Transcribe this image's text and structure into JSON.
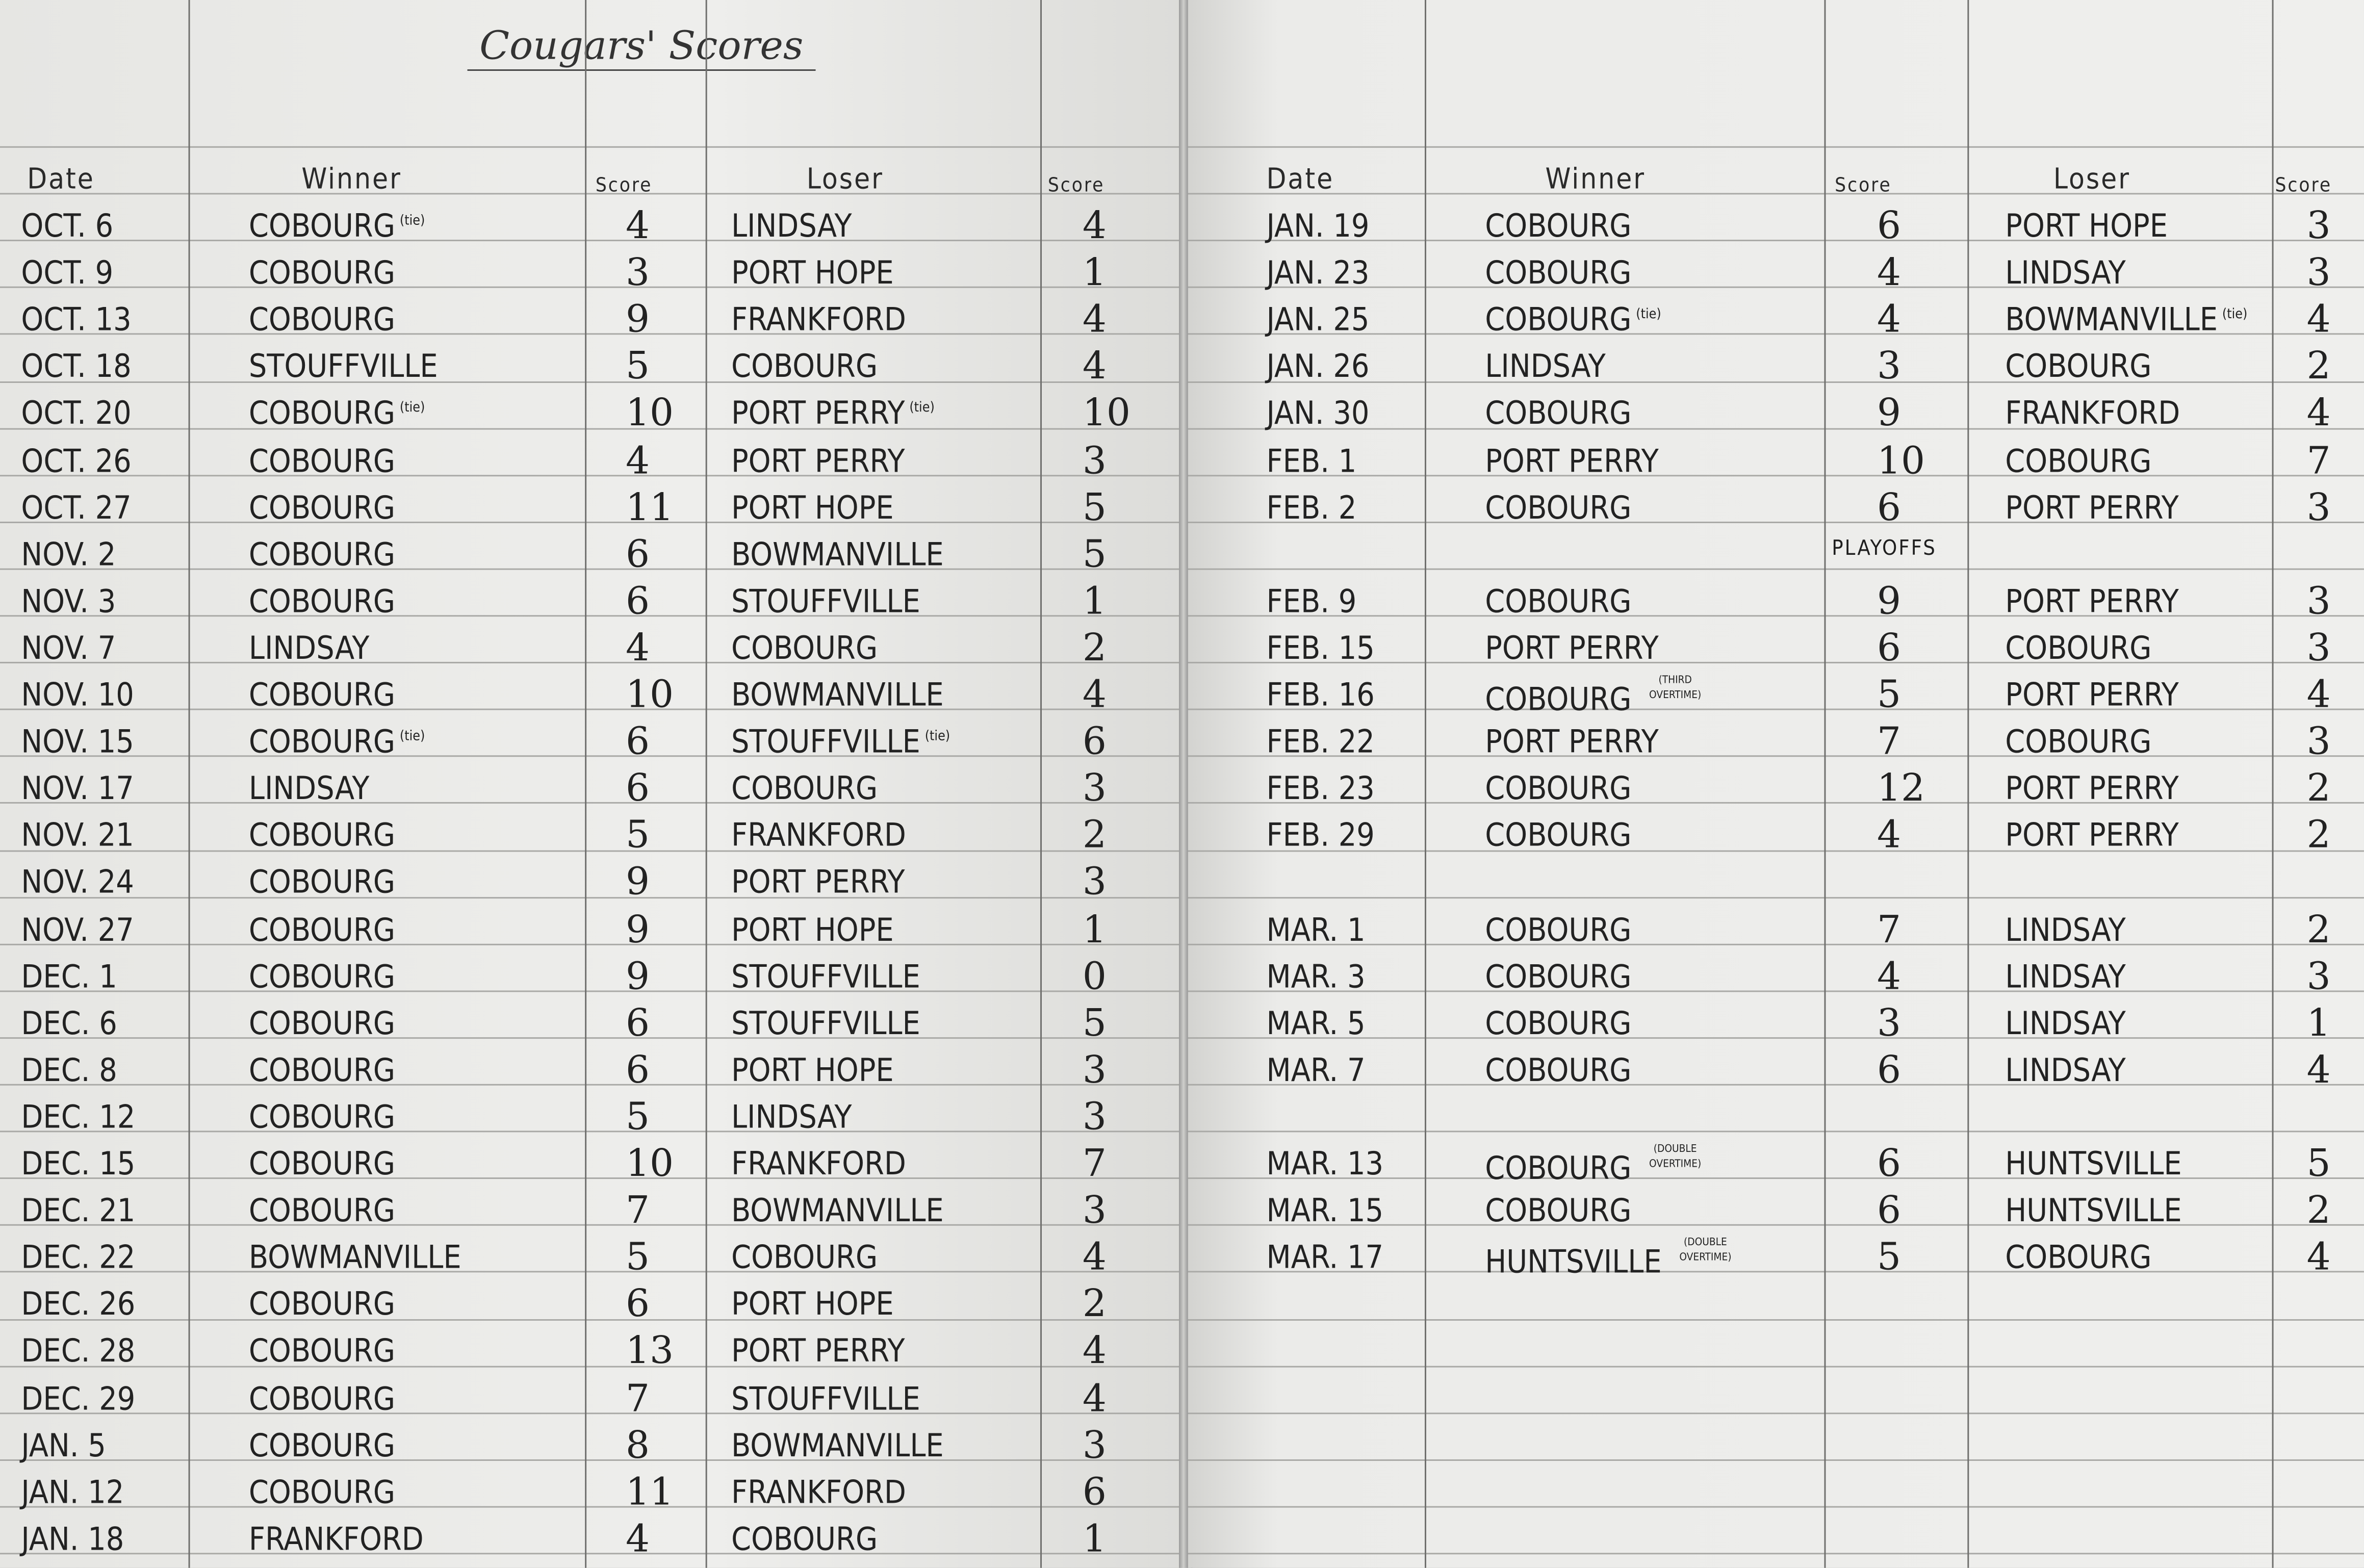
{
  "title": "Cougars' Scores",
  "headers": {
    "date": "Date",
    "winner": "Winner",
    "score": "Score",
    "loser": "Loser"
  },
  "playoffs_label": "Playoffs",
  "left_games": [
    {
      "date": "Oct. 6",
      "winner": "Cobourg",
      "winner_note": "(tie)",
      "winner_score": "4",
      "loser": "Lindsay",
      "loser_note": "",
      "loser_score": "4"
    },
    {
      "date": "Oct. 9",
      "winner": "Cobourg",
      "winner_note": "",
      "winner_score": "3",
      "loser": "Port Hope",
      "loser_note": "",
      "loser_score": "1"
    },
    {
      "date": "Oct. 13",
      "winner": "Cobourg",
      "winner_note": "",
      "winner_score": "9",
      "loser": "Frankford",
      "loser_note": "",
      "loser_score": "4"
    },
    {
      "date": "Oct. 18",
      "winner": "Stouffville",
      "winner_note": "",
      "winner_score": "5",
      "loser": "Cobourg",
      "loser_note": "",
      "loser_score": "4"
    },
    {
      "date": "Oct. 20",
      "winner": "Cobourg",
      "winner_note": "(tie)",
      "winner_score": "10",
      "loser": "Port Perry",
      "loser_note": "(tie)",
      "loser_score": "10"
    },
    {
      "date": "Oct. 26",
      "winner": "Cobourg",
      "winner_note": "",
      "winner_score": "4",
      "loser": "Port Perry",
      "loser_note": "",
      "loser_score": "3"
    },
    {
      "date": "Oct. 27",
      "winner": "Cobourg",
      "winner_note": "",
      "winner_score": "11",
      "loser": "Port Hope",
      "loser_note": "",
      "loser_score": "5"
    },
    {
      "date": "Nov. 2",
      "winner": "Cobourg",
      "winner_note": "",
      "winner_score": "6",
      "loser": "Bowmanville",
      "loser_note": "",
      "loser_score": "5"
    },
    {
      "date": "Nov. 3",
      "winner": "Cobourg",
      "winner_note": "",
      "winner_score": "6",
      "loser": "Stouffville",
      "loser_note": "",
      "loser_score": "1"
    },
    {
      "date": "Nov. 7",
      "winner": "Lindsay",
      "winner_note": "",
      "winner_score": "4",
      "loser": "Cobourg",
      "loser_note": "",
      "loser_score": "2"
    },
    {
      "date": "Nov. 10",
      "winner": "Cobourg",
      "winner_note": "",
      "winner_score": "10",
      "loser": "Bowmanville",
      "loser_note": "",
      "loser_score": "4"
    },
    {
      "date": "Nov. 15",
      "winner": "Cobourg",
      "winner_note": "(tie)",
      "winner_score": "6",
      "loser": "Stouffville",
      "loser_note": "(tie)",
      "loser_score": "6"
    },
    {
      "date": "Nov. 17",
      "winner": "Lindsay",
      "winner_note": "",
      "winner_score": "6",
      "loser": "Cobourg",
      "loser_note": "",
      "loser_score": "3"
    },
    {
      "date": "Nov. 21",
      "winner": "Cobourg",
      "winner_note": "",
      "winner_score": "5",
      "loser": "Frankford",
      "loser_note": "",
      "loser_score": "2"
    },
    {
      "date": "Nov. 24",
      "winner": "Cobourg",
      "winner_note": "",
      "winner_score": "9",
      "loser": "Port Perry",
      "loser_note": "",
      "loser_score": "3"
    },
    {
      "date": "Nov. 27",
      "winner": "Cobourg",
      "winner_note": "",
      "winner_score": "9",
      "loser": "Port Hope",
      "loser_note": "",
      "loser_score": "1"
    },
    {
      "date": "Dec. 1",
      "winner": "Cobourg",
      "winner_note": "",
      "winner_score": "9",
      "loser": "Stouffville",
      "loser_note": "",
      "loser_score": "0"
    },
    {
      "date": "Dec. 6",
      "winner": "Cobourg",
      "winner_note": "",
      "winner_score": "6",
      "loser": "Stouffville",
      "loser_note": "",
      "loser_score": "5"
    },
    {
      "date": "Dec. 8",
      "winner": "Cobourg",
      "winner_note": "",
      "winner_score": "6",
      "loser": "Port Hope",
      "loser_note": "",
      "loser_score": "3"
    },
    {
      "date": "Dec. 12",
      "winner": "Cobourg",
      "winner_note": "",
      "winner_score": "5",
      "loser": "Lindsay",
      "loser_note": "",
      "loser_score": "3"
    },
    {
      "date": "Dec. 15",
      "winner": "Cobourg",
      "winner_note": "",
      "winner_score": "10",
      "loser": "Frankford",
      "loser_note": "",
      "loser_score": "7"
    },
    {
      "date": "Dec. 21",
      "winner": "Cobourg",
      "winner_note": "",
      "winner_score": "7",
      "loser": "Bowmanville",
      "loser_note": "",
      "loser_score": "3"
    },
    {
      "date": "Dec. 22",
      "winner": "Bowmanville",
      "winner_note": "",
      "winner_score": "5",
      "loser": "Cobourg",
      "loser_note": "",
      "loser_score": "4"
    },
    {
      "date": "Dec. 26",
      "winner": "Cobourg",
      "winner_note": "",
      "winner_score": "6",
      "loser": "Port Hope",
      "loser_note": "",
      "loser_score": "2"
    },
    {
      "date": "Dec. 28",
      "winner": "Cobourg",
      "winner_note": "",
      "winner_score": "13",
      "loser": "Port Perry",
      "loser_note": "",
      "loser_score": "4"
    },
    {
      "date": "Dec. 29",
      "winner": "Cobourg",
      "winner_note": "",
      "winner_score": "7",
      "loser": "Stouffville",
      "loser_note": "",
      "loser_score": "4"
    },
    {
      "date": "Jan. 5",
      "winner": "Cobourg",
      "winner_note": "",
      "winner_score": "8",
      "loser": "Bowmanville",
      "loser_note": "",
      "loser_score": "3"
    },
    {
      "date": "Jan. 12",
      "winner": "Cobourg",
      "winner_note": "",
      "winner_score": "11",
      "loser": "Frankford",
      "loser_note": "",
      "loser_score": "6"
    },
    {
      "date": "Jan. 18",
      "winner": "Frankford",
      "winner_note": "",
      "winner_score": "4",
      "loser": "Cobourg",
      "loser_note": "",
      "loser_score": "1"
    }
  ],
  "right_games": [
    {
      "date": "Jan. 19",
      "winner": "Cobourg",
      "winner_note": "",
      "winner_score": "6",
      "loser": "Port Hope",
      "loser_note": "",
      "loser_score": "3"
    },
    {
      "date": "Jan. 23",
      "winner": "Cobourg",
      "winner_note": "",
      "winner_score": "4",
      "loser": "Lindsay",
      "loser_note": "",
      "loser_score": "3"
    },
    {
      "date": "Jan. 25",
      "winner": "Cobourg",
      "winner_note": "(tie)",
      "winner_score": "4",
      "loser": "Bowmanville",
      "loser_note": "(tie)",
      "loser_score": "4"
    },
    {
      "date": "Jan. 26",
      "winner": "Lindsay",
      "winner_note": "",
      "winner_score": "3",
      "loser": "Cobourg",
      "loser_note": "",
      "loser_score": "2"
    },
    {
      "date": "Jan. 30",
      "winner": "Cobourg",
      "winner_note": "",
      "winner_score": "9",
      "loser": "Frankford",
      "loser_note": "",
      "loser_score": "4"
    },
    {
      "date": "Feb. 1",
      "winner": "Port Perry",
      "winner_note": "",
      "winner_score": "10",
      "loser": "Cobourg",
      "loser_note": "",
      "loser_score": "7"
    },
    {
      "date": "Feb. 2",
      "winner": "Cobourg",
      "winner_note": "",
      "winner_score": "6",
      "loser": "Port Perry",
      "loser_note": "",
      "loser_score": "3"
    },
    {
      "date": "Feb. 9",
      "winner": "Cobourg",
      "winner_note": "",
      "winner_score": "9",
      "loser": "Port Perry",
      "loser_note": "",
      "loser_score": "3"
    },
    {
      "date": "Feb. 15",
      "winner": "Port Perry",
      "winner_note": "",
      "winner_score": "6",
      "loser": "Cobourg",
      "loser_note": "",
      "loser_score": "3"
    },
    {
      "date": "Feb. 16",
      "winner": "Cobourg",
      "winner_note": "(Third Overtime)",
      "winner_score": "5",
      "loser": "Port Perry",
      "loser_note": "",
      "loser_score": "4"
    },
    {
      "date": "Feb. 22",
      "winner": "Port Perry",
      "winner_note": "",
      "winner_score": "7",
      "loser": "Cobourg",
      "loser_note": "",
      "loser_score": "3"
    },
    {
      "date": "Feb. 23",
      "winner": "Cobourg",
      "winner_note": "",
      "winner_score": "12",
      "loser": "Port Perry",
      "loser_note": "",
      "loser_score": "2"
    },
    {
      "date": "Feb. 29",
      "winner": "Cobourg",
      "winner_note": "",
      "winner_score": "4",
      "loser": "Port Perry",
      "loser_note": "",
      "loser_score": "2"
    },
    {
      "date": "Mar. 1",
      "winner": "Cobourg",
      "winner_note": "",
      "winner_score": "7",
      "loser": "Lindsay",
      "loser_note": "",
      "loser_score": "2"
    },
    {
      "date": "Mar. 3",
      "winner": "Cobourg",
      "winner_note": "",
      "winner_score": "4",
      "loser": "Lindsay",
      "loser_note": "",
      "loser_score": "3"
    },
    {
      "date": "Mar. 5",
      "winner": "Cobourg",
      "winner_note": "",
      "winner_score": "3",
      "loser": "Lindsay",
      "loser_note": "",
      "loser_score": "1"
    },
    {
      "date": "Mar. 7",
      "winner": "Cobourg",
      "winner_note": "",
      "winner_score": "6",
      "loser": "Lindsay",
      "loser_note": "",
      "loser_score": "4"
    },
    {
      "date": "Mar. 13",
      "winner": "Cobourg",
      "winner_note": "(Double Overtime)",
      "winner_score": "6",
      "loser": "Huntsville",
      "loser_note": "",
      "loser_score": "5"
    },
    {
      "date": "Mar. 15",
      "winner": "Cobourg",
      "winner_note": "",
      "winner_score": "6",
      "loser": "Huntsville",
      "loser_note": "",
      "loser_score": "2"
    },
    {
      "date": "Mar. 17",
      "winner": "Huntsville",
      "winner_note": "(Double Overtime)",
      "winner_score": "5",
      "loser": "Cobourg",
      "loser_note": "",
      "loser_score": "4"
    }
  ]
}
